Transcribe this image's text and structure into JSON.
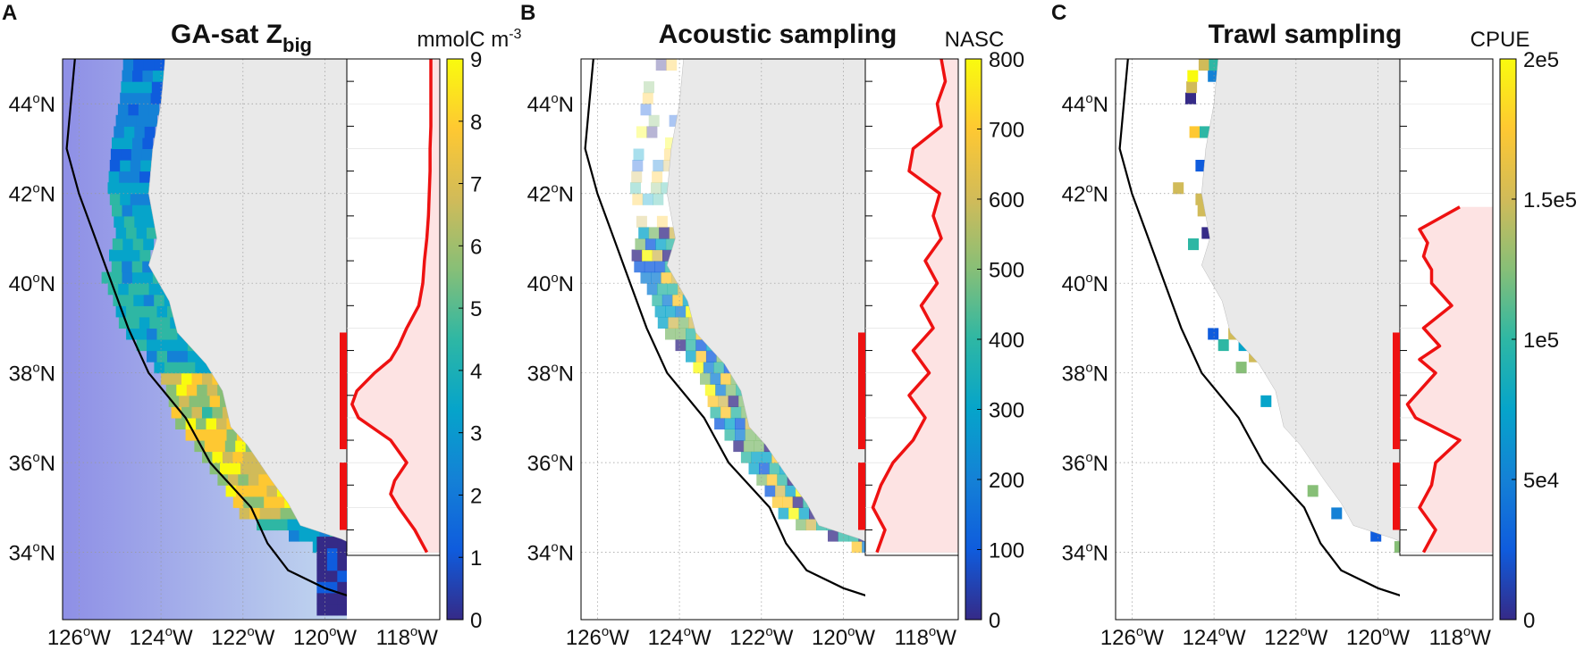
{
  "figure": {
    "panels": [
      {
        "letter": "A",
        "title_main": "GA-sat Z",
        "title_sub": "big",
        "colorbar": {
          "unit_main": "mmolC m",
          "unit_sup": "-3",
          "ticks": [
            "0",
            "1",
            "2",
            "3",
            "4",
            "5",
            "6",
            "7",
            "8",
            "9"
          ],
          "range": [
            0,
            9
          ]
        }
      },
      {
        "letter": "B",
        "title_main": "Acoustic sampling",
        "title_sub": "",
        "colorbar": {
          "unit_main": "NASC",
          "unit_sup": "",
          "ticks": [
            "0",
            "100",
            "200",
            "300",
            "400",
            "500",
            "600",
            "700",
            "800"
          ],
          "range": [
            0,
            800
          ]
        }
      },
      {
        "letter": "C",
        "title_main": "Trawl sampling",
        "title_sub": "",
        "colorbar": {
          "unit_main": "CPUE",
          "unit_sup": "",
          "ticks": [
            "0",
            "5e4",
            "1e5",
            "1.5e5",
            "2e5"
          ],
          "range": [
            0,
            200000
          ]
        }
      }
    ],
    "lat_ticks": [
      {
        "deg": "44",
        "sup": "o",
        "dir": "N"
      },
      {
        "deg": "42",
        "sup": "o",
        "dir": "N"
      },
      {
        "deg": "40",
        "sup": "o",
        "dir": "N"
      },
      {
        "deg": "38",
        "sup": "o",
        "dir": "N"
      },
      {
        "deg": "36",
        "sup": "o",
        "dir": "N"
      },
      {
        "deg": "34",
        "sup": "o",
        "dir": "N"
      }
    ],
    "lon_ticks": [
      {
        "deg": "126",
        "sup": "o",
        "dir": "W"
      },
      {
        "deg": "124",
        "sup": "o",
        "dir": "W"
      },
      {
        "deg": "122",
        "sup": "o",
        "dir": "W"
      },
      {
        "deg": "120",
        "sup": "o",
        "dir": "W"
      },
      {
        "deg": "118",
        "sup": "o",
        "dir": "W"
      }
    ],
    "colors": {
      "red_profile": "#ee1111",
      "profile_fill": "#fde3e3",
      "land": "#e9e9e9",
      "coast_line": "#000000"
    }
  },
  "chart_data": [
    {
      "type": "heatmap",
      "panel": "A",
      "lon_range": [
        -126.4,
        -117.2
      ],
      "lat_range": [
        32.5,
        45
      ],
      "color_range": [
        0,
        9
      ],
      "profile": {
        "lat": [
          34.0,
          34.5,
          35.0,
          35.3,
          35.6,
          36.0,
          36.5,
          37.0,
          37.3,
          37.6,
          38.0,
          38.3,
          38.6,
          39.0,
          39.5,
          40.0,
          40.5,
          41.0,
          41.5,
          42.0,
          42.5,
          43.0,
          43.5,
          44.0,
          44.5,
          45.0
        ],
        "value": [
          0.95,
          0.8,
          0.6,
          0.5,
          0.55,
          0.7,
          0.5,
          0.1,
          0.02,
          0.08,
          0.3,
          0.5,
          0.6,
          0.7,
          0.85,
          0.9,
          0.92,
          0.95,
          0.97,
          0.98,
          0.99,
          0.99,
          1.0,
          1.0,
          1.0,
          1.0
        ]
      }
    },
    {
      "type": "heatmap",
      "panel": "B",
      "lon_range": [
        -126.4,
        -117.2
      ],
      "lat_range": [
        32.5,
        45
      ],
      "color_range": [
        0,
        800
      ],
      "profile": {
        "lat": [
          34.0,
          34.5,
          35.0,
          35.5,
          36.0,
          36.5,
          37.0,
          37.5,
          38.0,
          38.5,
          39.0,
          39.5,
          40.0,
          40.5,
          41.0,
          41.5,
          42.0,
          42.5,
          43.0,
          43.5,
          44.0,
          44.5,
          45.0
        ],
        "value": [
          0.1,
          0.2,
          0.05,
          0.15,
          0.3,
          0.55,
          0.7,
          0.5,
          0.75,
          0.55,
          0.8,
          0.65,
          0.85,
          0.7,
          0.9,
          0.8,
          0.88,
          0.5,
          0.55,
          0.9,
          0.85,
          0.95,
          0.9
        ]
      }
    },
    {
      "type": "heatmap",
      "panel": "C",
      "lon_range": [
        -126.4,
        -117.2
      ],
      "lat_range": [
        32.5,
        45
      ],
      "color_range": [
        0,
        200000
      ],
      "profile": {
        "lat": [
          34.0,
          34.5,
          35.0,
          35.5,
          36.0,
          36.5,
          37.0,
          37.3,
          37.6,
          38.0,
          38.3,
          38.6,
          39.0,
          39.5,
          40.0,
          40.3,
          40.6,
          40.9,
          41.2,
          41.4,
          41.7
        ],
        "value": [
          0.25,
          0.4,
          0.2,
          0.35,
          0.4,
          0.7,
          0.15,
          0.05,
          0.2,
          0.4,
          0.2,
          0.45,
          0.25,
          0.6,
          0.35,
          0.35,
          0.25,
          0.3,
          0.2,
          0.4,
          0.7
        ]
      }
    }
  ]
}
